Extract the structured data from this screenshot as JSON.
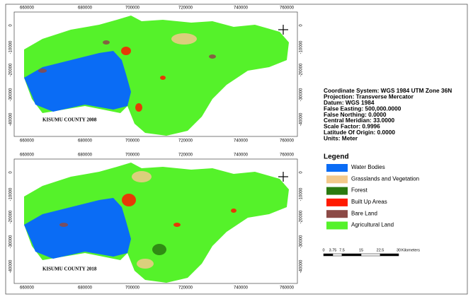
{
  "maps": [
    {
      "title": "KISUMU COUNTY 2008",
      "x_labels": [
        "660000",
        "680000",
        "700000",
        "720000",
        "740000",
        "760000"
      ],
      "y_labels": [
        "0",
        "-10000",
        "-20000",
        "-30000",
        "-40000"
      ]
    },
    {
      "title": "KISUMU COUNTY 2018",
      "x_labels": [
        "660000",
        "680000",
        "700000",
        "720000",
        "740000",
        "760000"
      ],
      "y_labels": [
        "0",
        "-10000",
        "-20000",
        "-30000",
        "-40000"
      ]
    }
  ],
  "info": {
    "lines": [
      "Coordinate System: WGS 1984 UTM Zone 36N",
      "Projection: Transverse Mercator",
      "Datum: WGS 1984",
      "False Easting: 500,000.0000",
      "False Northing: 0.0000",
      "Central Meridian: 33.0000",
      "Scale Factor: 0.9996",
      "Latitude Of Origin: 0.0000",
      "Units: Meter"
    ]
  },
  "legend": {
    "title": "Legend",
    "items": [
      {
        "label": "Water  Bodies",
        "color": "#0a6cf5"
      },
      {
        "label": "Grasslands and Vegetation",
        "color": "#f3c98b"
      },
      {
        "label": "Forest",
        "color": "#2a7a10"
      },
      {
        "label": "Built Up Areas",
        "color": "#ff1a00"
      },
      {
        "label": "Bare Land",
        "color": "#8c4a46"
      },
      {
        "label": "Agricultural Land",
        "color": "#55f22a"
      }
    ]
  },
  "scale_bar": {
    "labels": [
      "0",
      "3.75",
      "7.5",
      "15",
      "22.5",
      "30"
    ],
    "unit": "Kilometers"
  }
}
